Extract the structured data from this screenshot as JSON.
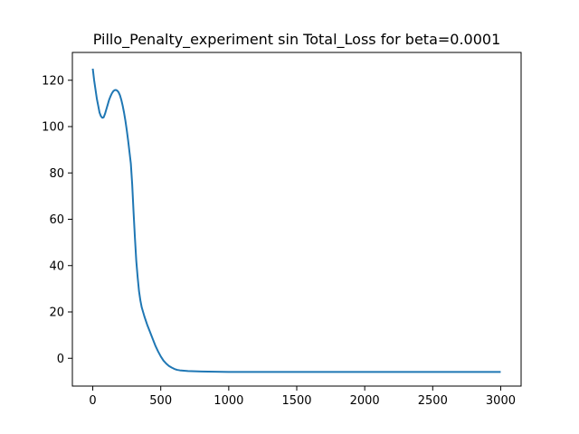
{
  "chart_data": {
    "type": "line",
    "title": "Pillo_Penalty_experiment sin Total_Loss for beta=0.0001",
    "xlabel": "",
    "ylabel": "",
    "xlim": [
      -150,
      3150
    ],
    "ylim": [
      -12,
      132
    ],
    "xticks": [
      0,
      500,
      1000,
      1500,
      2000,
      2500,
      3000
    ],
    "yticks": [
      0,
      20,
      40,
      60,
      80,
      100,
      120
    ],
    "grid": false,
    "series": [
      {
        "color": "#1f77b4",
        "x": [
          0,
          10,
          20,
          30,
          40,
          50,
          60,
          70,
          80,
          90,
          100,
          110,
          120,
          130,
          140,
          150,
          160,
          170,
          180,
          190,
          200,
          210,
          220,
          230,
          240,
          250,
          260,
          270,
          280,
          290,
          300,
          310,
          320,
          330,
          340,
          350,
          360,
          380,
          400,
          420,
          440,
          460,
          480,
          500,
          520,
          540,
          560,
          580,
          600,
          620,
          640,
          660,
          680,
          700,
          750,
          800,
          900,
          1000,
          1200,
          1500,
          2000,
          2500,
          3000
        ],
        "y": [
          125,
          120,
          116,
          112,
          109,
          106,
          104.5,
          103.8,
          104,
          105.5,
          107.5,
          109.5,
          111.5,
          113,
          114.3,
          115.2,
          115.7,
          115.8,
          115.5,
          114.8,
          113.5,
          111.5,
          109,
          106,
          102.5,
          98.5,
          94,
          89,
          84,
          75,
          63,
          52,
          42,
          35,
          29,
          25,
          22,
          18,
          14.5,
          11.5,
          8.5,
          5.5,
          3,
          0.8,
          -1,
          -2.3,
          -3.3,
          -4,
          -4.6,
          -5,
          -5.2,
          -5.3,
          -5.4,
          -5.5,
          -5.6,
          -5.7,
          -5.8,
          -5.9,
          -5.9,
          -5.9,
          -5.9,
          -5.9,
          -5.9
        ]
      }
    ]
  }
}
